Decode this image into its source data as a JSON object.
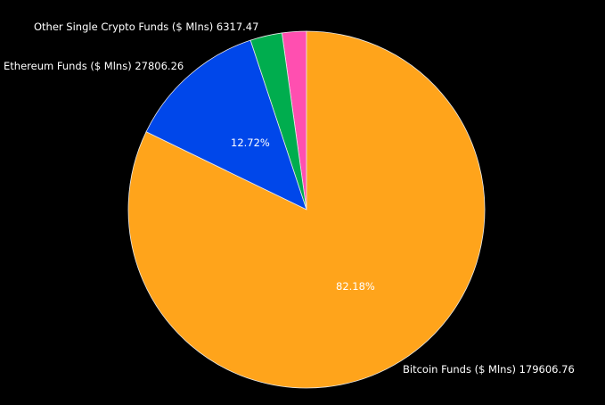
{
  "chart_data": {
    "type": "pie",
    "title": "",
    "background": "#000000",
    "start_angle_deg": 0,
    "direction": "counterclockwise",
    "slices": [
      {
        "key": "unlabeled",
        "label": "",
        "value": 4818.9,
        "percent": 2.2,
        "color": "#ff4fb0",
        "show_label": false,
        "show_percent": false
      },
      {
        "key": "other",
        "label": "Other Single Crypto Funds ($ Mlns) 6317.47",
        "value": 6317.47,
        "percent": 2.89,
        "color": "#00ad4e",
        "show_label": true,
        "show_percent": false
      },
      {
        "key": "ethereum",
        "label": "Ethereum Funds ($ Mlns) 27806.26",
        "value": 27806.26,
        "percent": 12.72,
        "color": "#0047ea",
        "show_label": true,
        "show_percent": true,
        "percent_text": "12.72%"
      },
      {
        "key": "bitcoin",
        "label": "Bitcoin Funds ($ Mlns) 179606.76",
        "value": 179606.76,
        "percent": 82.18,
        "color": "#ffa41b",
        "show_label": true,
        "show_percent": true,
        "percent_text": "82.18%"
      }
    ]
  },
  "labels": {
    "other": "Other Single Crypto Funds ($ Mlns) 6317.47",
    "ethereum": "Ethereum Funds ($ Mlns) 27806.26",
    "bitcoin": "Bitcoin Funds ($ Mlns) 179606.76",
    "ethereum_pct": "12.72%",
    "bitcoin_pct": "82.18%"
  }
}
